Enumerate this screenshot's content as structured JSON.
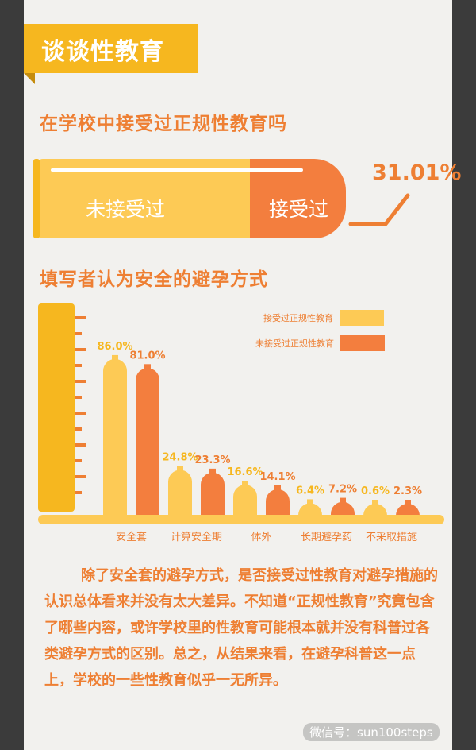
{
  "section_title": "谈谈性教育",
  "question1": {
    "title": "在学校中接受过正规性教育吗",
    "not_received_label": "未接受过",
    "received_label": "接受过",
    "received_pct": 31.01,
    "received_pct_text": "31.01%",
    "colors": {
      "not_received": "#fdca55",
      "received": "#f37e3e"
    }
  },
  "question2_title": "填写者认为安全的避孕方式",
  "chart_data": {
    "type": "bar",
    "categories": [
      "安全套",
      "计算安全期",
      "体外",
      "长期避孕药",
      "不采取措施"
    ],
    "series": [
      {
        "name": "接受过正规性教育",
        "values": [
          86.0,
          24.8,
          16.6,
          6.4,
          0.6
        ],
        "labels": [
          "86.0%",
          "24.8%",
          "16.6%",
          "6.4%",
          "0.6%"
        ],
        "color": "#fdca55",
        "label_color": "#f6b71f"
      },
      {
        "name": "未接受过正规性教育",
        "values": [
          81.0,
          23.3,
          14.1,
          7.2,
          2.3
        ],
        "labels": [
          "81.0%",
          "23.3%",
          "14.1%",
          "7.2%",
          "2.3%"
        ],
        "color": "#f37e3e",
        "label_color": "#ee7f33"
      }
    ],
    "ylim": [
      0,
      100
    ],
    "legend_position": "top-right",
    "grid": false
  },
  "paragraph": "除了安全套的避孕方式，是否接受过性教育对避孕措施的认识总体看来并没有太大差异。不知道“正规性教育”究竟包含了哪些内容，或许学校里的性教育可能根本就并没有科普过各类避孕方式的区别。总之，从结果来看，在避孕科普这一点上，学校的一些性教育似乎一无所异。",
  "watermark": "微信号：sun100steps"
}
